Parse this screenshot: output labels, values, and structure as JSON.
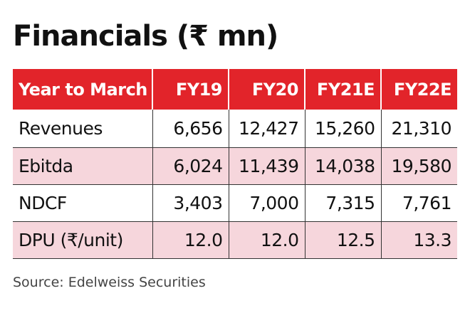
{
  "title": "Financials (₹ mn)",
  "source": "Source: Edelweiss Securities",
  "colors": {
    "header_bg": "#e2242a",
    "header_text": "#ffffff",
    "shaded_row": "#f6d6dc"
  },
  "chart_data": {
    "type": "table",
    "title": "Financials (₹ mn)",
    "columns": [
      "Year to March",
      "FY19",
      "FY20",
      "FY21E",
      "FY22E"
    ],
    "rows": [
      {
        "label": "Revenues",
        "values": [
          "6,656",
          "12,427",
          "15,260",
          "21,310"
        ]
      },
      {
        "label": "Ebitda",
        "values": [
          "6,024",
          "11,439",
          "14,038",
          "19,580"
        ]
      },
      {
        "label": "NDCF",
        "values": [
          "3,403",
          "7,000",
          "7,315",
          "7,761"
        ]
      },
      {
        "label": "DPU (₹/unit)",
        "values": [
          "12.0",
          "12.0",
          "12.5",
          "13.3"
        ]
      }
    ]
  }
}
